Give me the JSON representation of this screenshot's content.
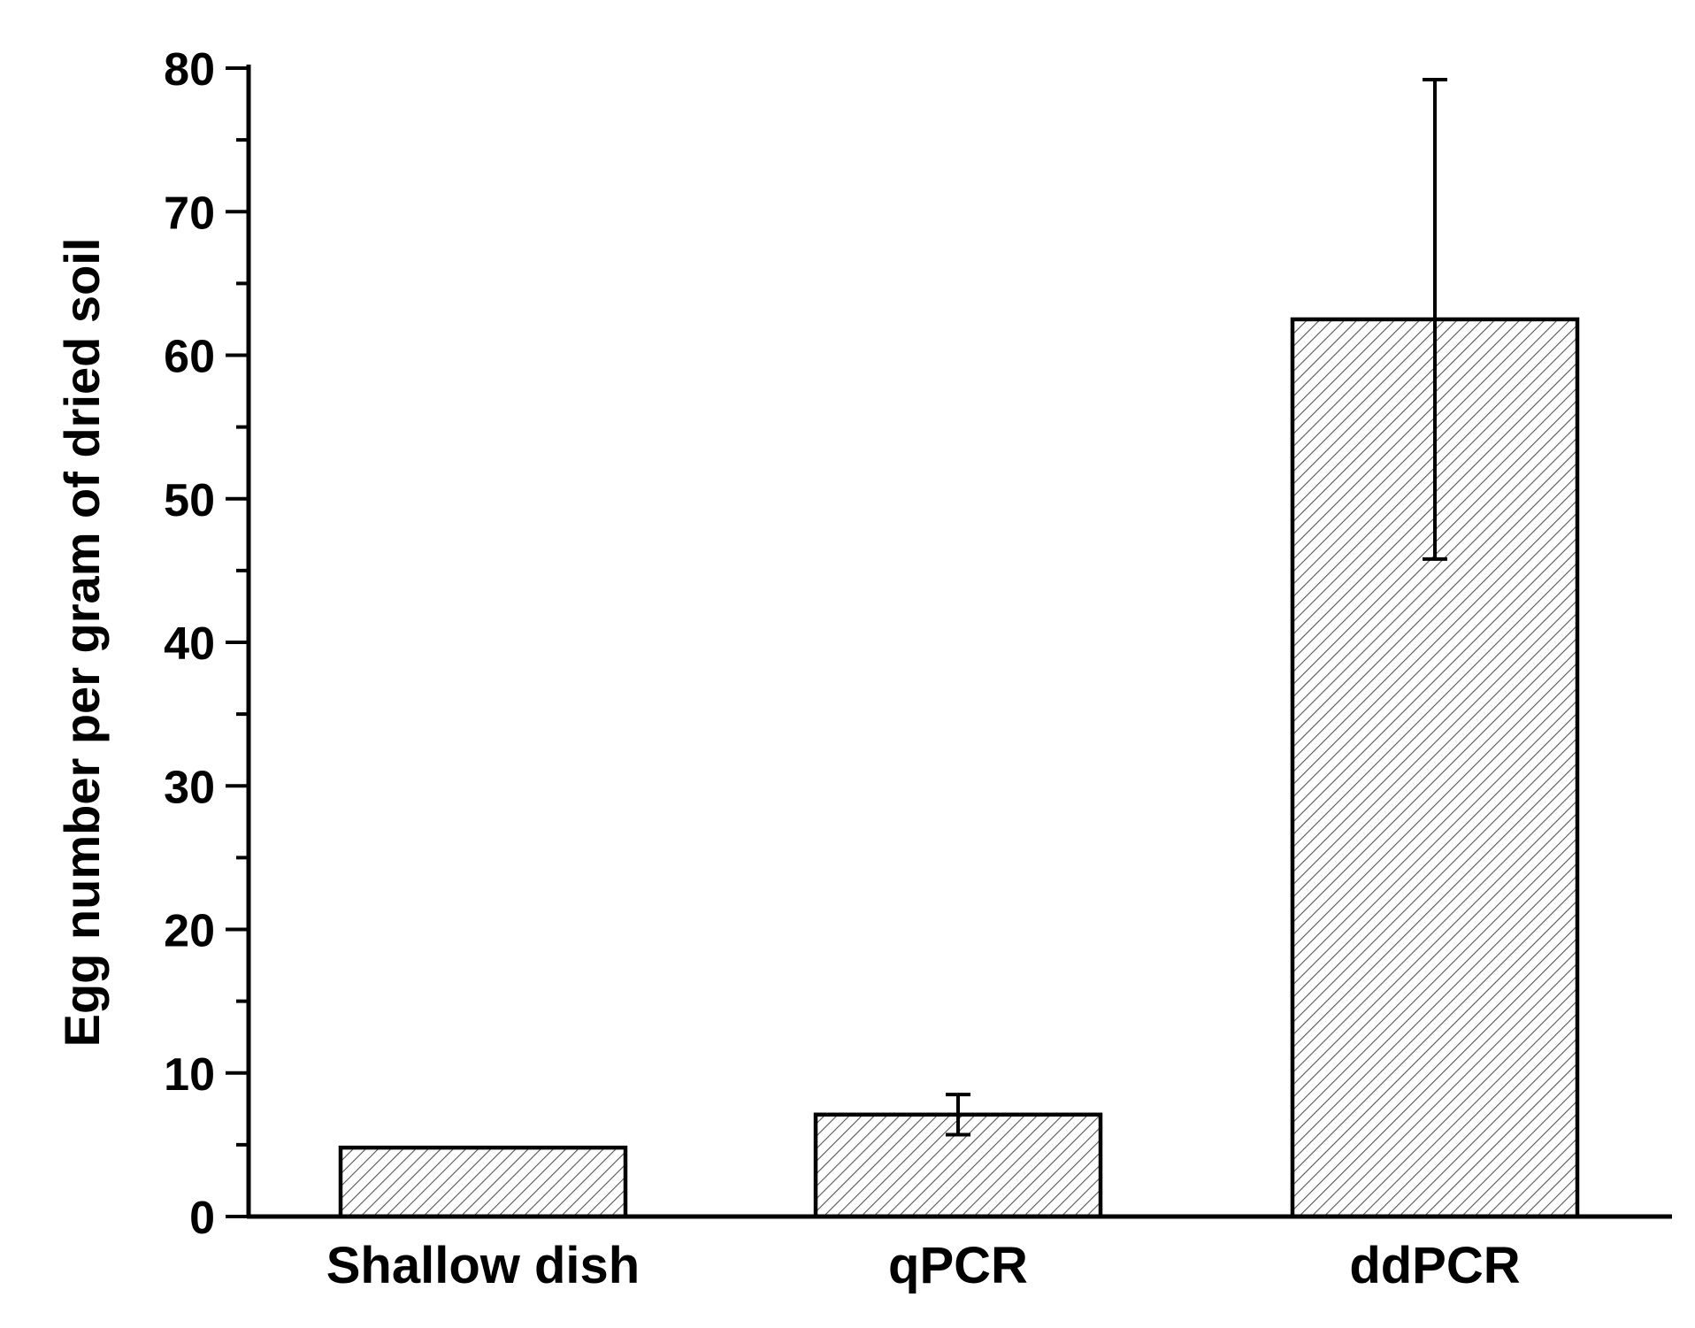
{
  "chart_data": {
    "type": "bar",
    "categories": [
      "Shallow dish",
      "qPCR",
      "ddPCR"
    ],
    "values": [
      4.8,
      7.1,
      62.5
    ],
    "errors": [
      0,
      1.4,
      16.7
    ],
    "title": "",
    "xlabel": "",
    "ylabel": "Egg number per gram of dried soil",
    "ylim": [
      0,
      80
    ],
    "yticks": [
      0,
      10,
      20,
      30,
      40,
      50,
      60,
      70,
      80
    ],
    "ytick_labels": [
      "0",
      "10",
      "20",
      "30",
      "40",
      "50",
      "60",
      "70",
      "80"
    ],
    "grid": false,
    "legend": "none",
    "bar_fill": "hatched",
    "colors": {
      "bar_edge": "#000000",
      "hatch": "#555555",
      "background": "#ffffff"
    }
  }
}
